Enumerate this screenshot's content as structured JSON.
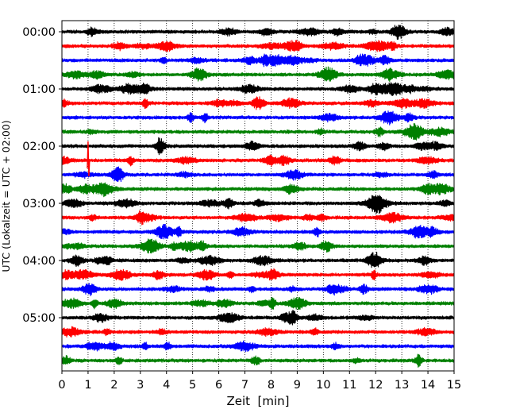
{
  "chart_data": {
    "type": "line",
    "subtype": "helicorder",
    "xlabel": "Zeit  [min]",
    "ylabel": "UTC (Lokalzeit = UTC + 02:00)",
    "xlim": [
      0,
      15
    ],
    "x_ticks": [
      0,
      1,
      2,
      3,
      4,
      5,
      6,
      7,
      8,
      9,
      10,
      11,
      12,
      13,
      14,
      15
    ],
    "x_tick_labels": [
      "0",
      "1",
      "2",
      "3",
      "4",
      "5",
      "6",
      "7",
      "8",
      "9",
      "10",
      "11",
      "12",
      "13",
      "14",
      "15"
    ],
    "y_tick_labels": [
      "00:00",
      "01:00",
      "02:00",
      "03:00",
      "04:00",
      "05:00"
    ],
    "minutes_per_line": 15,
    "lines_per_hour": 4,
    "vertical_grid": "dotted, every minute",
    "trace_colors": [
      "#000000",
      "#ff0000",
      "#0000ff",
      "#008000"
    ],
    "series": [
      {
        "start": "00:00",
        "color": "#000000"
      },
      {
        "start": "00:15",
        "color": "#ff0000"
      },
      {
        "start": "00:30",
        "color": "#0000ff"
      },
      {
        "start": "00:45",
        "color": "#008000"
      },
      {
        "start": "01:00",
        "color": "#000000"
      },
      {
        "start": "01:15",
        "color": "#ff0000"
      },
      {
        "start": "01:30",
        "color": "#0000ff"
      },
      {
        "start": "01:45",
        "color": "#008000"
      },
      {
        "start": "02:00",
        "color": "#000000"
      },
      {
        "start": "02:15",
        "color": "#ff0000"
      },
      {
        "start": "02:30",
        "color": "#0000ff"
      },
      {
        "start": "02:45",
        "color": "#008000"
      },
      {
        "start": "03:00",
        "color": "#000000"
      },
      {
        "start": "03:15",
        "color": "#ff0000"
      },
      {
        "start": "03:30",
        "color": "#0000ff"
      },
      {
        "start": "03:45",
        "color": "#008000"
      },
      {
        "start": "04:00",
        "color": "#000000"
      },
      {
        "start": "04:15",
        "color": "#ff0000"
      },
      {
        "start": "04:30",
        "color": "#0000ff"
      },
      {
        "start": "04:45",
        "color": "#008000"
      },
      {
        "start": "05:00",
        "color": "#000000"
      },
      {
        "start": "05:15",
        "color": "#ff0000"
      },
      {
        "start": "05:30",
        "color": "#0000ff"
      },
      {
        "start": "05:45",
        "color": "#008000"
      }
    ]
  }
}
